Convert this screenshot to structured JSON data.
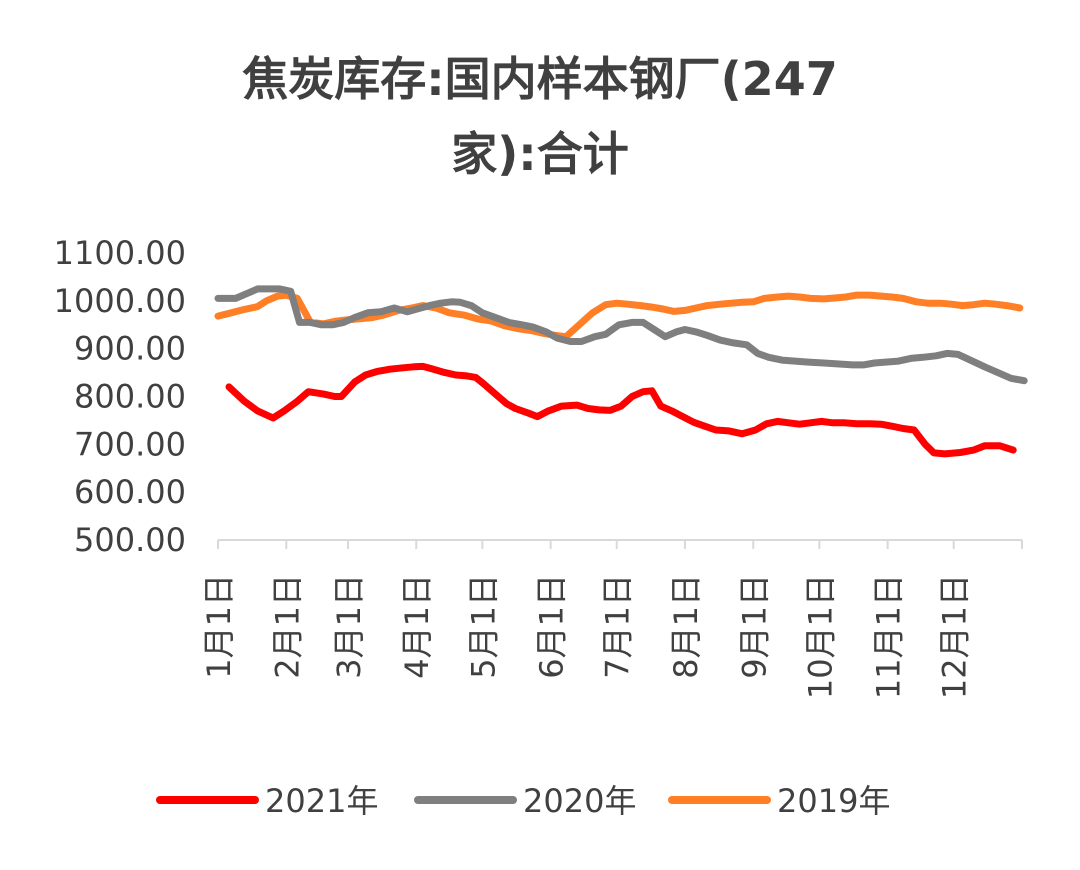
{
  "chart_data": {
    "type": "line",
    "title_line1": "焦炭库存:国内样本钢厂(247",
    "title_line2": "家):合计",
    "xlabel": "",
    "ylabel": "",
    "ylim": [
      500,
      1100
    ],
    "yticks": [
      "1100.00",
      "1000.00",
      "900.00",
      "800.00",
      "700.00",
      "600.00",
      "500.00"
    ],
    "ytick_values": [
      1100,
      1000,
      900,
      800,
      700,
      600,
      500
    ],
    "categories": [
      "1月1日",
      "2月1日",
      "3月1日",
      "4月1日",
      "5月1日",
      "6月1日",
      "7月1日",
      "8月1日",
      "9月1日",
      "10月1日",
      "11月1日",
      "12月1日"
    ],
    "category_days": [
      0,
      31,
      59,
      90,
      120,
      151,
      181,
      212,
      243,
      273,
      304,
      334
    ],
    "x_range_days": [
      0,
      365
    ],
    "grid": false,
    "legend_position": "bottom",
    "series": [
      {
        "name": "2021年",
        "color": "#ff0000",
        "points": [
          [
            5,
            820
          ],
          [
            12,
            790
          ],
          [
            18,
            770
          ],
          [
            25,
            755
          ],
          [
            30,
            770
          ],
          [
            36,
            790
          ],
          [
            41,
            810
          ],
          [
            48,
            805
          ],
          [
            53,
            800
          ],
          [
            56,
            800
          ],
          [
            62,
            830
          ],
          [
            67,
            845
          ],
          [
            72,
            852
          ],
          [
            78,
            857
          ],
          [
            84,
            860
          ],
          [
            89,
            862
          ],
          [
            93,
            863
          ],
          [
            97,
            858
          ],
          [
            103,
            850
          ],
          [
            108,
            845
          ],
          [
            113,
            843
          ],
          [
            117,
            840
          ],
          [
            121,
            825
          ],
          [
            126,
            805
          ],
          [
            131,
            785
          ],
          [
            135,
            775
          ],
          [
            141,
            765
          ],
          [
            145,
            758
          ],
          [
            150,
            770
          ],
          [
            156,
            780
          ],
          [
            163,
            782
          ],
          [
            168,
            775
          ],
          [
            173,
            772
          ],
          [
            178,
            771
          ],
          [
            183,
            780
          ],
          [
            188,
            800
          ],
          [
            193,
            810
          ],
          [
            197,
            812
          ],
          [
            201,
            780
          ],
          [
            206,
            770
          ],
          [
            211,
            758
          ],
          [
            216,
            746
          ],
          [
            221,
            738
          ],
          [
            226,
            730
          ],
          [
            232,
            728
          ],
          [
            238,
            722
          ],
          [
            244,
            730
          ],
          [
            249,
            743
          ],
          [
            254,
            748
          ],
          [
            259,
            745
          ],
          [
            264,
            742
          ],
          [
            269,
            745
          ],
          [
            274,
            748
          ],
          [
            279,
            745
          ],
          [
            284,
            745
          ],
          [
            290,
            743
          ],
          [
            296,
            743
          ],
          [
            301,
            742
          ],
          [
            306,
            738
          ],
          [
            311,
            733
          ],
          [
            316,
            730
          ],
          [
            321,
            700
          ],
          [
            325,
            682
          ],
          [
            330,
            680
          ],
          [
            337,
            683
          ],
          [
            343,
            688
          ],
          [
            348,
            697
          ],
          [
            355,
            697
          ],
          [
            361,
            688
          ]
        ]
      },
      {
        "name": "2020年",
        "color": "#7f7f7f",
        "points": [
          [
            0,
            1005
          ],
          [
            8,
            1005
          ],
          [
            13,
            1015
          ],
          [
            18,
            1025
          ],
          [
            24,
            1025
          ],
          [
            28,
            1025
          ],
          [
            33,
            1020
          ],
          [
            37,
            955
          ],
          [
            42,
            955
          ],
          [
            47,
            950
          ],
          [
            52,
            950
          ],
          [
            57,
            955
          ],
          [
            62,
            965
          ],
          [
            68,
            975
          ],
          [
            74,
            977
          ],
          [
            80,
            985
          ],
          [
            86,
            977
          ],
          [
            92,
            985
          ],
          [
            96,
            990
          ],
          [
            101,
            995
          ],
          [
            106,
            998
          ],
          [
            110,
            997
          ],
          [
            115,
            990
          ],
          [
            120,
            975
          ],
          [
            126,
            965
          ],
          [
            132,
            955
          ],
          [
            138,
            950
          ],
          [
            143,
            945
          ],
          [
            149,
            935
          ],
          [
            154,
            922
          ],
          [
            160,
            915
          ],
          [
            165,
            915
          ],
          [
            171,
            925
          ],
          [
            176,
            930
          ],
          [
            182,
            950
          ],
          [
            188,
            955
          ],
          [
            193,
            955
          ],
          [
            198,
            940
          ],
          [
            203,
            925
          ],
          [
            208,
            935
          ],
          [
            212,
            940
          ],
          [
            217,
            935
          ],
          [
            222,
            928
          ],
          [
            228,
            918
          ],
          [
            234,
            912
          ],
          [
            240,
            908
          ],
          [
            245,
            890
          ],
          [
            250,
            882
          ],
          [
            256,
            876
          ],
          [
            262,
            874
          ],
          [
            268,
            872
          ],
          [
            275,
            870
          ],
          [
            282,
            868
          ],
          [
            288,
            866
          ],
          [
            293,
            866
          ],
          [
            298,
            870
          ],
          [
            303,
            872
          ],
          [
            309,
            874
          ],
          [
            315,
            880
          ],
          [
            320,
            882
          ],
          [
            326,
            885
          ],
          [
            331,
            890
          ],
          [
            336,
            888
          ],
          [
            342,
            875
          ],
          [
            348,
            862
          ],
          [
            354,
            850
          ],
          [
            360,
            838
          ],
          [
            366,
            833
          ]
        ]
      },
      {
        "name": "2019年",
        "color": "#ff7f27",
        "points": [
          [
            0,
            968
          ],
          [
            6,
            975
          ],
          [
            12,
            982
          ],
          [
            18,
            988
          ],
          [
            22,
            1000
          ],
          [
            27,
            1010
          ],
          [
            31,
            1012
          ],
          [
            36,
            1005
          ],
          [
            42,
            955
          ],
          [
            48,
            952
          ],
          [
            53,
            957
          ],
          [
            58,
            960
          ],
          [
            63,
            962
          ],
          [
            70,
            965
          ],
          [
            75,
            970
          ],
          [
            82,
            980
          ],
          [
            88,
            985
          ],
          [
            93,
            990
          ],
          [
            99,
            985
          ],
          [
            105,
            975
          ],
          [
            112,
            970
          ],
          [
            118,
            962
          ],
          [
            124,
            958
          ],
          [
            130,
            948
          ],
          [
            136,
            942
          ],
          [
            142,
            938
          ],
          [
            148,
            932
          ],
          [
            153,
            928
          ],
          [
            158,
            925
          ],
          [
            164,
            950
          ],
          [
            170,
            975
          ],
          [
            176,
            992
          ],
          [
            181,
            995
          ],
          [
            186,
            993
          ],
          [
            192,
            990
          ],
          [
            197,
            987
          ],
          [
            202,
            983
          ],
          [
            207,
            978
          ],
          [
            212,
            980
          ],
          [
            217,
            985
          ],
          [
            222,
            990
          ],
          [
            228,
            993
          ],
          [
            233,
            995
          ],
          [
            238,
            997
          ],
          [
            243,
            998
          ],
          [
            248,
            1005
          ],
          [
            254,
            1008
          ],
          [
            259,
            1010
          ],
          [
            264,
            1008
          ],
          [
            269,
            1005
          ],
          [
            275,
            1004
          ],
          [
            280,
            1006
          ],
          [
            285,
            1008
          ],
          [
            290,
            1012
          ],
          [
            296,
            1012
          ],
          [
            301,
            1010
          ],
          [
            306,
            1008
          ],
          [
            311,
            1005
          ],
          [
            317,
            998
          ],
          [
            322,
            995
          ],
          [
            328,
            995
          ],
          [
            333,
            993
          ],
          [
            338,
            990
          ],
          [
            343,
            992
          ],
          [
            348,
            995
          ],
          [
            353,
            993
          ],
          [
            358,
            990
          ],
          [
            364,
            985
          ]
        ]
      }
    ]
  }
}
